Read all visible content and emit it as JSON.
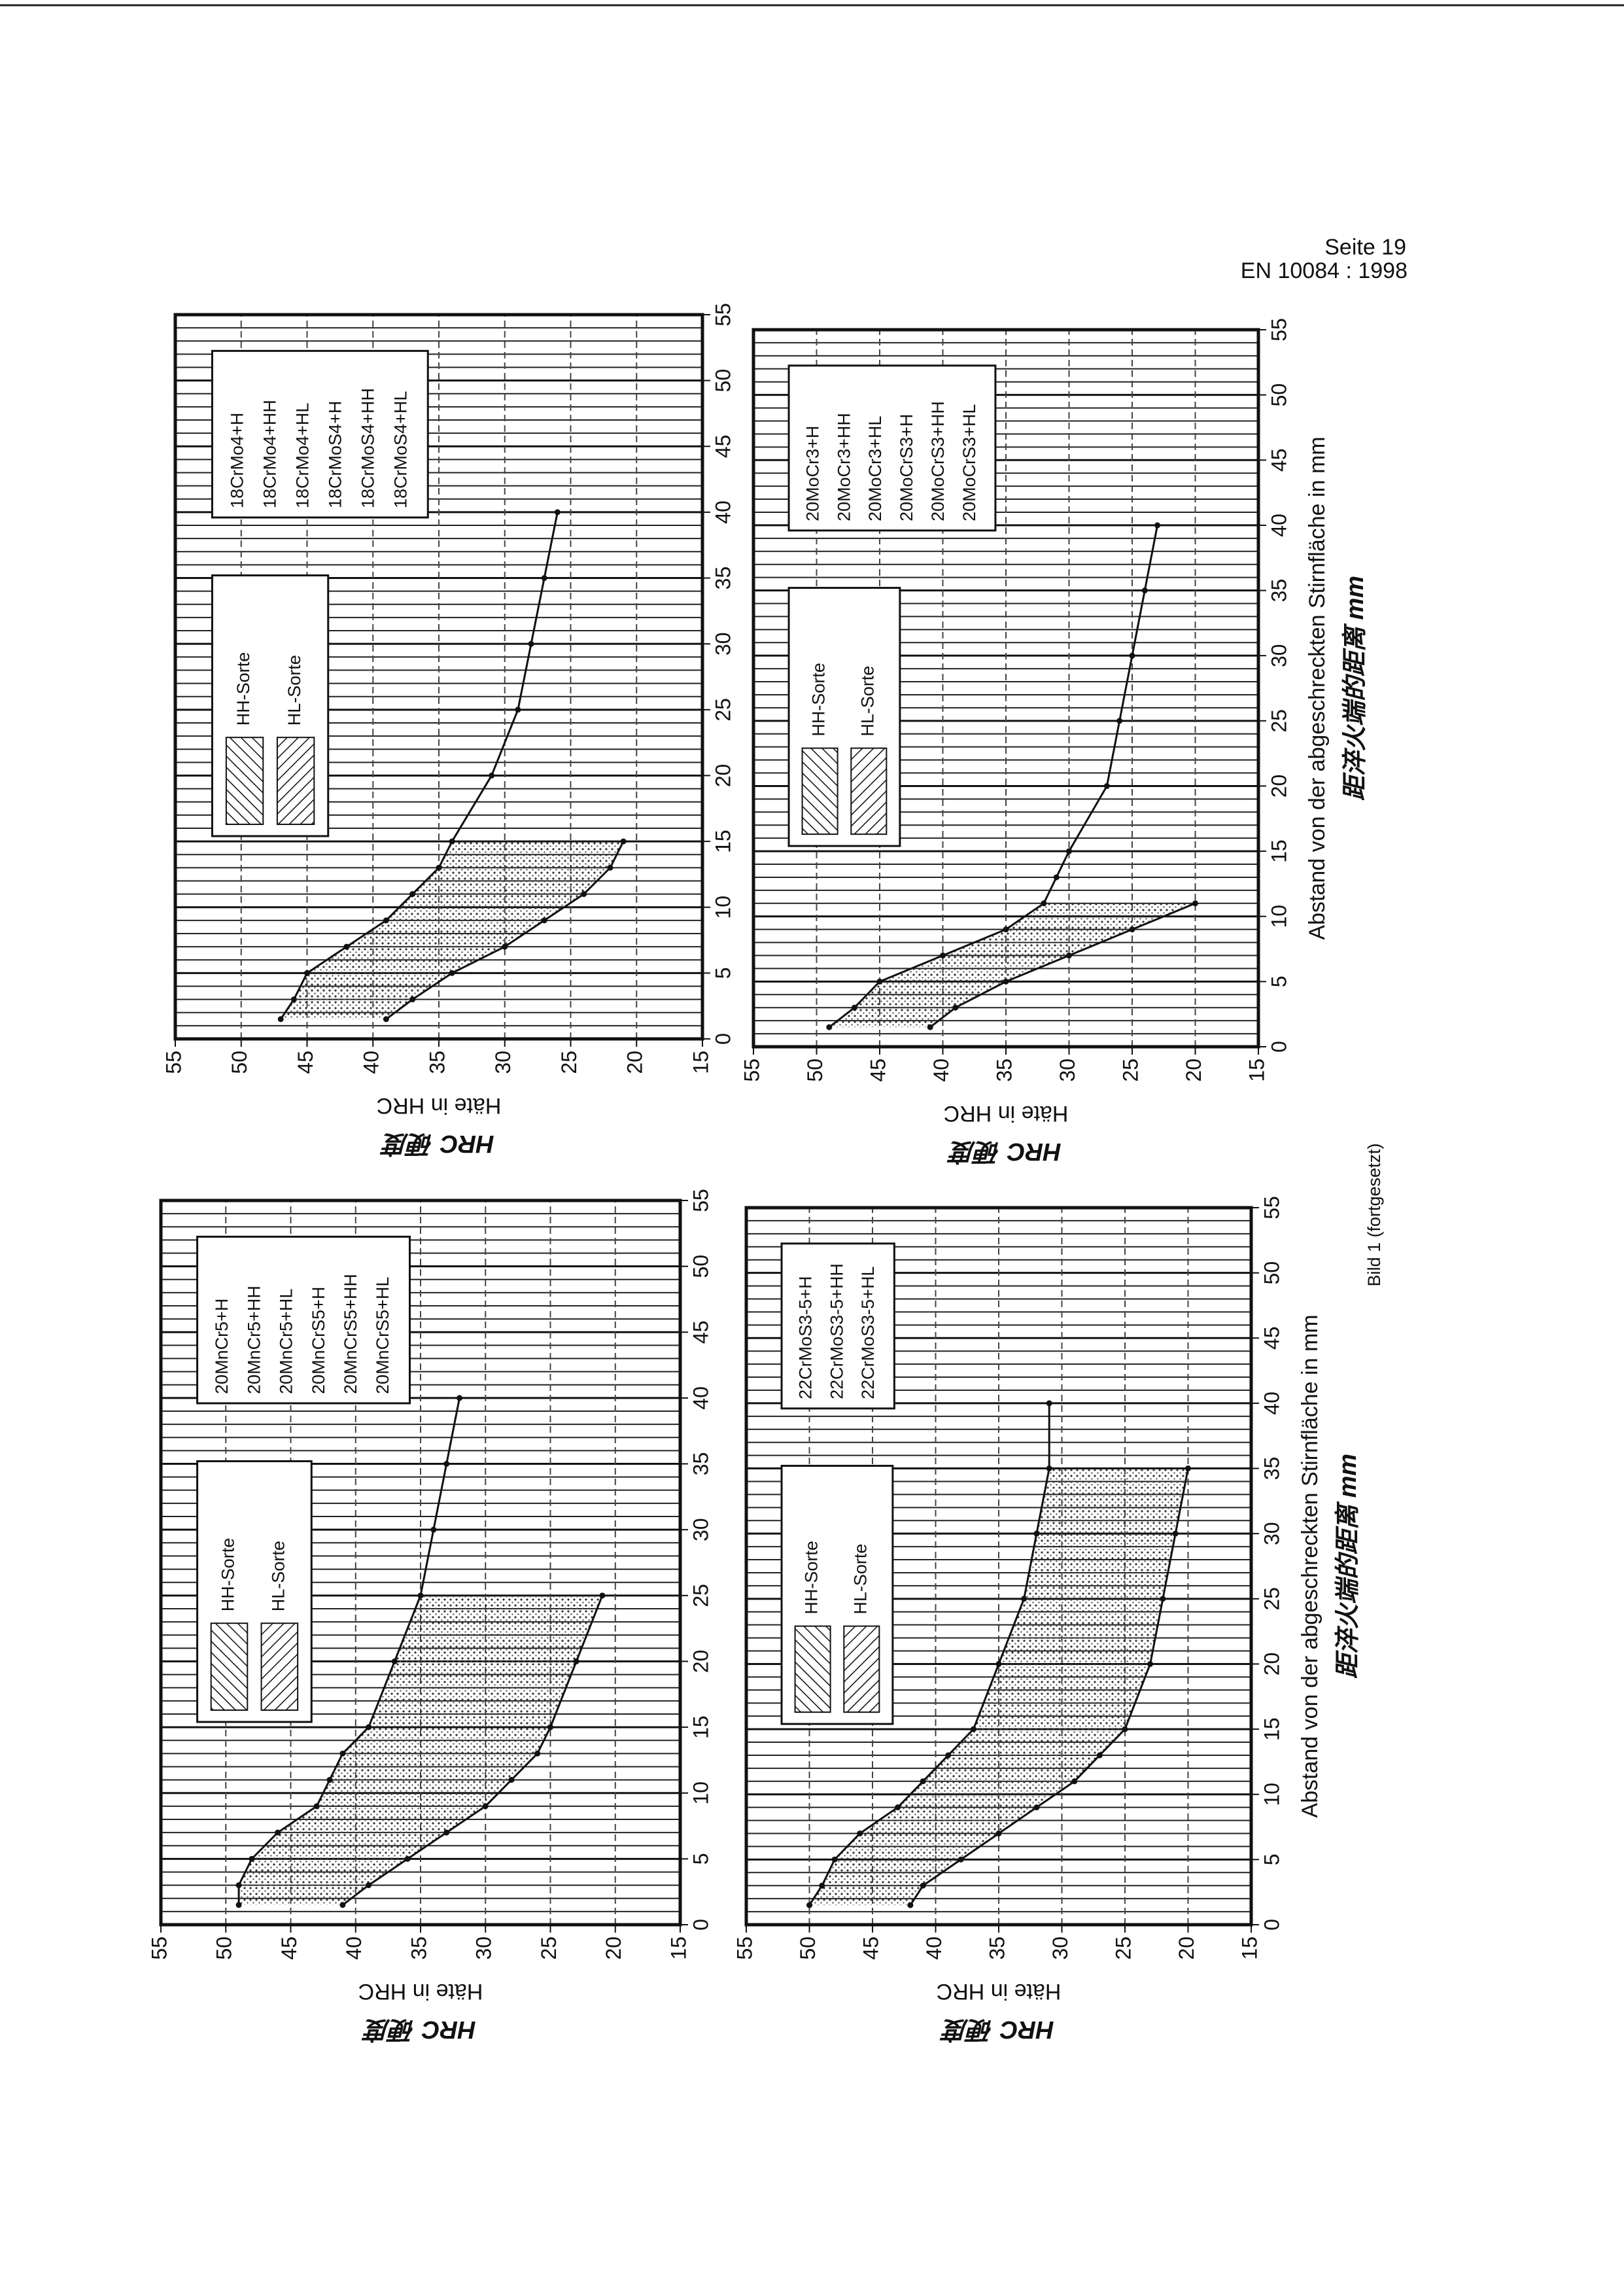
{
  "header": {
    "page": "Seite 19",
    "standard": "EN 10084 : 1998"
  },
  "caption": "Bild 1 (fortgesetzt)",
  "chart_data": [
    {
      "type": "line",
      "ylabel": "Häte in HRC",
      "ylabel_note": "HRC 硬度",
      "legend": [
        "HH-Sorte",
        "HL-Sorte"
      ],
      "steels": [
        "18CrMo4+H",
        "18CrMo4+HH",
        "18CrMo4+HL",
        "18CrMoS4+H",
        "18CrMoS4+HH",
        "18CrMoS4+HL"
      ],
      "x": [
        1.5,
        3,
        5,
        7,
        9,
        11,
        13,
        15,
        20,
        25,
        30,
        35,
        40
      ],
      "series": [
        {
          "color": "#111111",
          "values": [
            47,
            46,
            45,
            42,
            39,
            37,
            35,
            34,
            31,
            29,
            28,
            27,
            26
          ]
        },
        {
          "color": "#111111",
          "values": [
            39,
            37,
            34,
            30,
            27,
            24,
            22,
            21,
            null,
            null,
            null,
            null,
            null
          ]
        }
      ],
      "xlim": [
        0,
        55
      ],
      "ylim": [
        15,
        55
      ],
      "xticks": [
        0,
        5,
        10,
        15,
        20,
        25,
        30,
        35,
        40,
        45,
        50,
        55
      ],
      "yticks": [
        15,
        20,
        25,
        30,
        35,
        40,
        45,
        50,
        55
      ],
      "grid": true
    },
    {
      "type": "line",
      "ylabel": "Häte in HRC",
      "ylabel_note": "HRC 硬度",
      "legend": [
        "HH-Sorte",
        "HL-Sorte"
      ],
      "steels": [
        "20MnCr5+H",
        "20MnCr5+HH",
        "20MnCr5+HL",
        "20MnCrS5+H",
        "20MnCrS5+HH",
        "20MnCrS5+HL"
      ],
      "x": [
        1.5,
        3,
        5,
        7,
        9,
        11,
        13,
        15,
        20,
        25,
        30,
        35,
        40
      ],
      "series": [
        {
          "color": "#111111",
          "values": [
            49,
            49,
            48,
            46,
            43,
            42,
            41,
            39,
            37,
            35,
            34,
            33,
            32
          ]
        },
        {
          "color": "#111111",
          "values": [
            41,
            39,
            36,
            33,
            30,
            28,
            26,
            25,
            23,
            21,
            null,
            null,
            null
          ]
        }
      ],
      "xlim": [
        0,
        55
      ],
      "ylim": [
        15,
        55
      ],
      "xticks": [
        0,
        5,
        10,
        15,
        20,
        25,
        30,
        35,
        40,
        45,
        50,
        55
      ],
      "yticks": [
        15,
        20,
        25,
        30,
        35,
        40,
        45,
        50,
        55
      ],
      "grid": true
    },
    {
      "type": "line",
      "ylabel": "Häte in HRC",
      "ylabel_note": "HRC 硬度",
      "xlabel": "Abstand von der abgeschreckten Stirnfläche in mm",
      "xlabel_note": "距淬火端的距离 mm",
      "legend": [
        "HH-Sorte",
        "HL-Sorte"
      ],
      "steels": [
        "20MoCr3+H",
        "20MoCr3+HH",
        "20MoCr3+HL",
        "20MoCrS3+H",
        "20MoCrS3+HH",
        "20MoCrS3+HL"
      ],
      "x": [
        1.5,
        3,
        5,
        7,
        9,
        11,
        13,
        15,
        20,
        25,
        30,
        35,
        40
      ],
      "series": [
        {
          "color": "#111111",
          "values": [
            49,
            47,
            45,
            40,
            35,
            32,
            31,
            30,
            27,
            26,
            25,
            24,
            23
          ]
        },
        {
          "color": "#111111",
          "values": [
            41,
            39,
            35,
            30,
            25,
            20,
            null,
            null,
            null,
            null,
            null,
            null,
            null
          ]
        }
      ],
      "xlim": [
        0,
        55
      ],
      "ylim": [
        15,
        55
      ],
      "xticks": [
        0,
        5,
        10,
        15,
        20,
        25,
        30,
        35,
        40,
        45,
        50,
        55
      ],
      "yticks": [
        15,
        20,
        25,
        30,
        35,
        40,
        45,
        50,
        55
      ],
      "grid": true
    },
    {
      "type": "line",
      "ylabel": "Häte in HRC",
      "ylabel_note": "HRC 硬度",
      "xlabel": "Abstand von der abgeschreckten Stirnfläche in mm",
      "xlabel_note": "距淬火端的距离 mm",
      "legend": [
        "HH-Sorte",
        "HL-Sorte"
      ],
      "steels": [
        "22CrMoS3-5+H",
        "22CrMoS3-5+HH",
        "22CrMoS3-5+HL"
      ],
      "x": [
        1.5,
        3,
        5,
        7,
        9,
        11,
        13,
        15,
        20,
        25,
        30,
        35,
        40
      ],
      "series": [
        {
          "color": "#111111",
          "values": [
            50,
            49,
            48,
            46,
            43,
            41,
            39,
            37,
            35,
            33,
            32,
            31,
            31
          ]
        },
        {
          "color": "#111111",
          "values": [
            42,
            41,
            38,
            35,
            32,
            29,
            27,
            25,
            23,
            22,
            21,
            20,
            null
          ]
        }
      ],
      "xlim": [
        0,
        55
      ],
      "ylim": [
        15,
        55
      ],
      "xticks": [
        0,
        5,
        10,
        15,
        20,
        25,
        30,
        35,
        40,
        45,
        50,
        55
      ],
      "yticks": [
        15,
        20,
        25,
        30,
        35,
        40,
        45,
        50,
        55
      ],
      "grid": true
    }
  ]
}
